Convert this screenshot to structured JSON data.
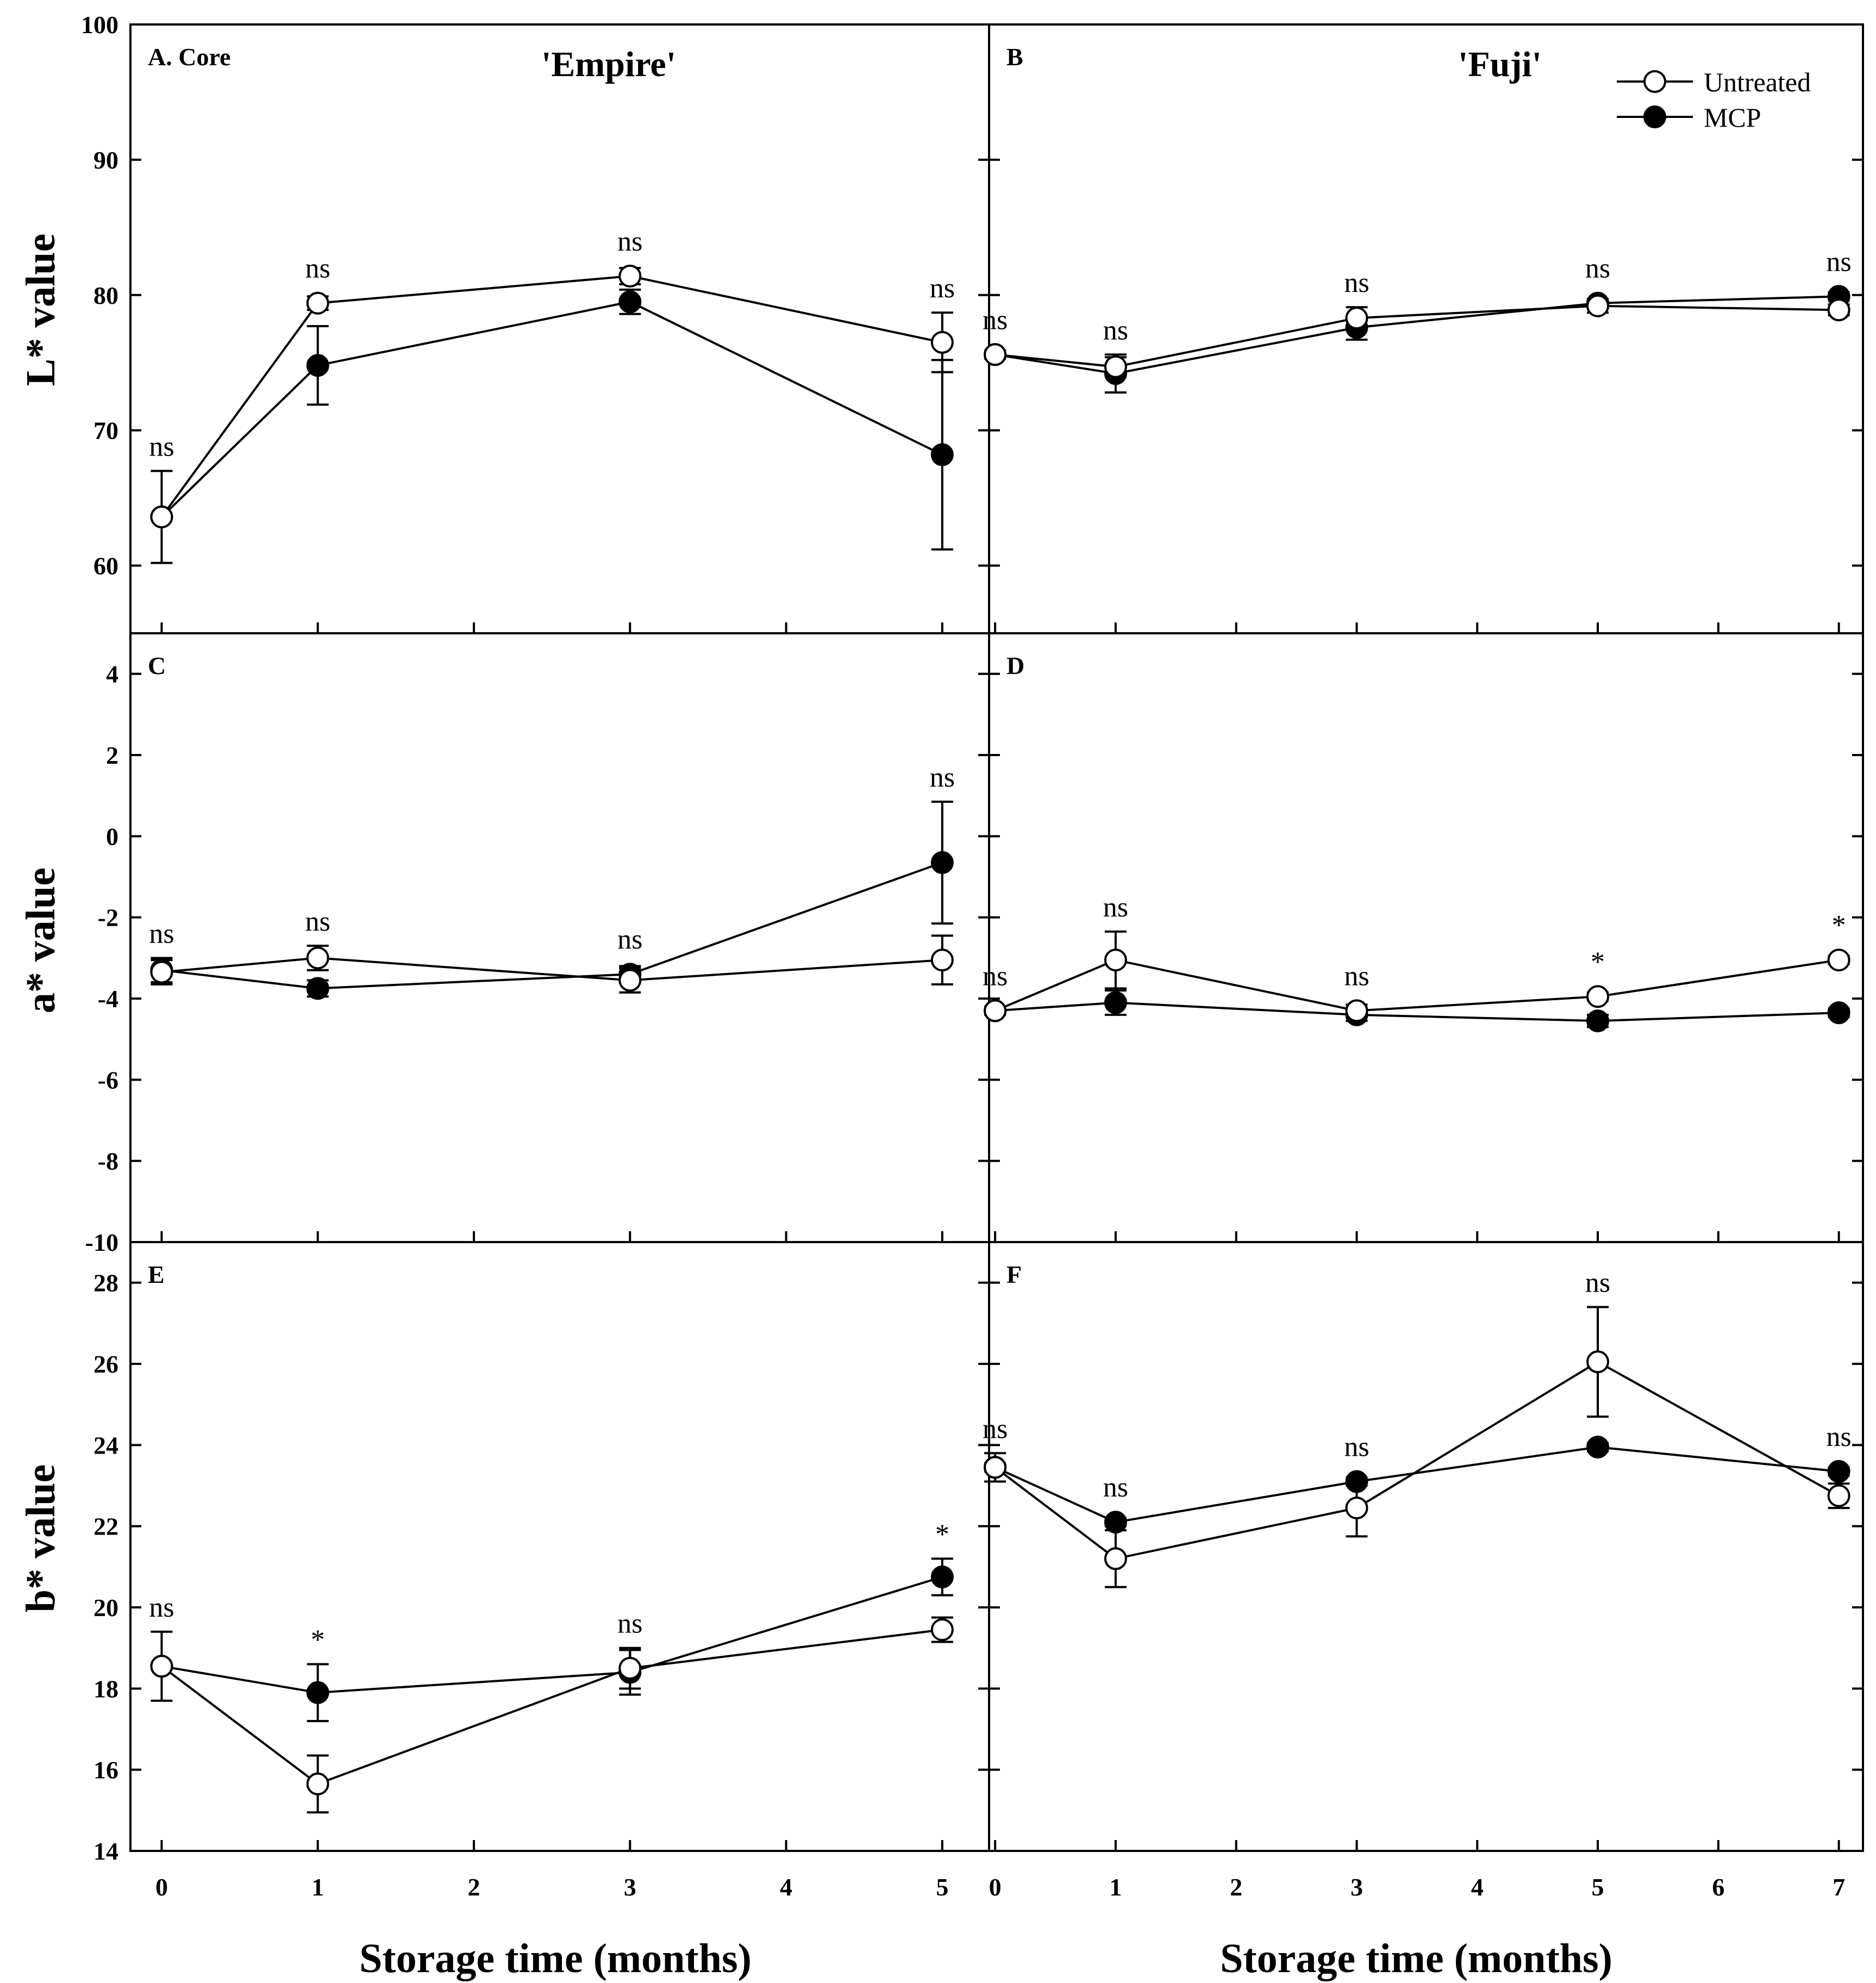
{
  "chart_data": {
    "type": "line",
    "xlabel": "Storage time (months)",
    "legend": {
      "position": "top-right of panel B",
      "entries": [
        {
          "name": "Untreated",
          "marker": "open-circle"
        },
        {
          "name": "MCP",
          "marker": "filled-circle"
        }
      ]
    },
    "columns": [
      {
        "cultivar": "'Empire'",
        "xlim": [
          -0.2,
          5.3
        ],
        "xticks": [
          0,
          1,
          2,
          3,
          4,
          5
        ]
      },
      {
        "cultivar": "'Fuji'",
        "xlim": [
          -0.05,
          7.2
        ],
        "xticks": [
          0,
          1,
          2,
          3,
          4,
          5,
          6,
          7
        ]
      }
    ],
    "rows": [
      {
        "ylabel": "L* value",
        "ylim": [
          55,
          100
        ],
        "yticks": [
          60,
          70,
          80,
          90,
          100
        ],
        "ytick_labels": [
          "60",
          "70",
          "80",
          "90",
          "100"
        ]
      },
      {
        "ylabel": "a* value",
        "ylim": [
          -10,
          5
        ],
        "yticks": [
          -10,
          -8,
          -6,
          -4,
          -2,
          0,
          2,
          4
        ],
        "ytick_labels": [
          "-10",
          "-8",
          "-6",
          "-4",
          "-2",
          "0",
          "2",
          "4"
        ]
      },
      {
        "ylabel": "b* value",
        "ylim": [
          14,
          29
        ],
        "yticks": [
          14,
          16,
          18,
          20,
          22,
          24,
          26,
          28
        ],
        "ytick_labels": [
          "14",
          "16",
          "18",
          "20",
          "22",
          "24",
          "26",
          "28"
        ]
      }
    ],
    "panels": [
      {
        "label": "A. Core",
        "row": 0,
        "col": 0,
        "x": [
          0,
          1,
          3,
          5
        ],
        "series": [
          {
            "name": "Untreated",
            "values": [
              63.6,
              79.4,
              81.4,
              76.5
            ],
            "errors": [
              0,
              0.5,
              0.6,
              2.2
            ]
          },
          {
            "name": "MCP",
            "values": [
              63.6,
              74.8,
              79.5,
              68.2
            ],
            "errors": [
              3.4,
              2.9,
              0.9,
              7.0
            ]
          }
        ],
        "significance": [
          "ns",
          "ns",
          "ns",
          "ns"
        ]
      },
      {
        "label": "B",
        "row": 0,
        "col": 1,
        "x": [
          0,
          1,
          3,
          5,
          7
        ],
        "series": [
          {
            "name": "Untreated",
            "values": [
              75.6,
              74.7,
              78.3,
              79.2,
              78.9
            ],
            "errors": [
              0.3,
              0.7,
              0.8,
              0.5,
              0.4
            ]
          },
          {
            "name": "MCP",
            "values": [
              75.6,
              74.2,
              77.6,
              79.4,
              79.9
            ],
            "errors": [
              0.3,
              1.4,
              0.9,
              0.3,
              0.3
            ]
          }
        ],
        "significance": [
          "ns",
          "ns",
          "ns",
          "ns",
          "ns"
        ]
      },
      {
        "label": "C",
        "row": 1,
        "col": 0,
        "x": [
          0,
          1,
          3,
          5
        ],
        "series": [
          {
            "name": "Untreated",
            "values": [
              -3.35,
              -3.0,
              -3.55,
              -3.05
            ],
            "errors": [
              0.3,
              0.3,
              0.3,
              0.6
            ]
          },
          {
            "name": "MCP",
            "values": [
              -3.3,
              -3.75,
              -3.4,
              -0.65
            ],
            "errors": [
              0.3,
              0.2,
              0.2,
              1.5
            ]
          }
        ],
        "significance": [
          "ns",
          "ns",
          "ns",
          "ns"
        ]
      },
      {
        "label": "D",
        "row": 1,
        "col": 1,
        "x": [
          0,
          1,
          3,
          5,
          7
        ],
        "series": [
          {
            "name": "Untreated",
            "values": [
              -4.3,
              -3.05,
              -4.3,
              -3.95,
              -3.05
            ],
            "errors": [
              0.1,
              0.7,
              0.15,
              0.1,
              0.1
            ]
          },
          {
            "name": "MCP",
            "values": [
              -4.3,
              -4.1,
              -4.4,
              -4.55,
              -4.35
            ],
            "errors": [
              0.1,
              0.3,
              0.15,
              0.15,
              0.1
            ]
          }
        ],
        "significance": [
          "ns",
          "ns",
          "ns",
          "*",
          "*"
        ]
      },
      {
        "label": "E",
        "row": 2,
        "col": 0,
        "x": [
          0,
          1,
          3,
          5
        ],
        "series": [
          {
            "name": "Untreated",
            "values": [
              18.55,
              15.65,
              18.5,
              19.45
            ],
            "errors": [
              0,
              0.7,
              0.5,
              0.3
            ]
          },
          {
            "name": "MCP",
            "values": [
              18.55,
              17.9,
              18.4,
              20.75
            ],
            "errors": [
              0.85,
              0.7,
              0.55,
              0.45
            ]
          }
        ],
        "significance": [
          "ns",
          "*",
          "ns",
          "*"
        ]
      },
      {
        "label": "F",
        "row": 2,
        "col": 1,
        "x": [
          0,
          1,
          3,
          5,
          7
        ],
        "series": [
          {
            "name": "Untreated",
            "values": [
              23.45,
              21.2,
              22.45,
              26.05,
              22.75
            ],
            "errors": [
              0.35,
              0.7,
              0.7,
              1.35,
              0.3
            ]
          },
          {
            "name": "MCP",
            "values": [
              23.45,
              22.1,
              23.1,
              23.95,
              23.35
            ],
            "errors": [
              0.1,
              0.1,
              0.1,
              0.1,
              0.1
            ]
          }
        ],
        "significance": [
          "ns",
          "ns",
          "ns",
          "ns",
          "ns"
        ]
      }
    ]
  }
}
